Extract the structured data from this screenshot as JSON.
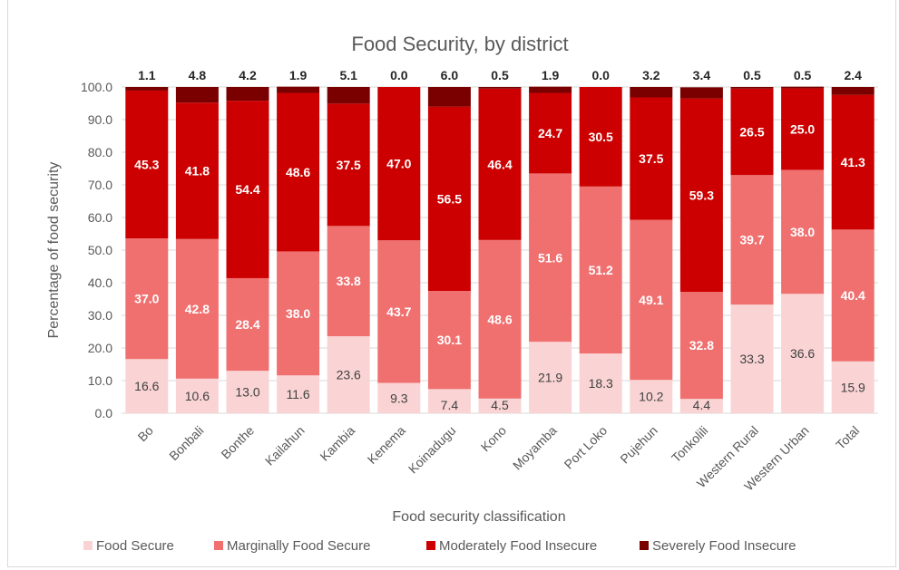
{
  "chart_data": {
    "type": "bar",
    "stacked": true,
    "title": "Food Security, by district",
    "xlabel": "Food security classification",
    "ylabel": "Percentage of food security",
    "ylim": [
      0,
      100
    ],
    "yticks": [
      "0.0",
      "10.0",
      "20.0",
      "30.0",
      "40.0",
      "50.0",
      "60.0",
      "70.0",
      "80.0",
      "90.0",
      "100.0"
    ],
    "grid": true,
    "legend_position": "bottom",
    "categories": [
      "Bo",
      "Bonbali",
      "Bonthe",
      "Kailahun",
      "Kambia",
      "Kenema",
      "Koinadugu",
      "Kono",
      "Moyamba",
      "Port Loko",
      "Pujehun",
      "Tonkolili",
      "Western Rural",
      "Western Urban",
      "Total"
    ],
    "series": [
      {
        "name": "Food Secure",
        "color": "#fad4d4",
        "values": [
          16.6,
          10.6,
          13.0,
          11.6,
          23.6,
          9.3,
          7.4,
          4.5,
          21.9,
          18.3,
          10.2,
          4.4,
          33.3,
          36.6,
          15.9
        ],
        "labels": [
          "16.6",
          "10.6",
          "13.0",
          "11.6",
          "23.6",
          "9.3",
          "7.4",
          "4.5",
          "21.9",
          "18.3",
          "10.2",
          "4.4",
          "33.3",
          "36.6",
          "15.9"
        ]
      },
      {
        "name": "Marginally Food Secure",
        "color": "#f07070",
        "values": [
          37.0,
          42.8,
          28.4,
          38.0,
          33.8,
          43.7,
          30.1,
          48.6,
          51.6,
          51.2,
          49.1,
          32.8,
          39.7,
          38.0,
          40.4
        ],
        "labels": [
          "37.0",
          "42.8",
          "28.4",
          "38.0",
          "33.8",
          "43.7",
          "30.1",
          "48.6",
          "51.6",
          "51.2",
          "49.1",
          "32.8",
          "39.7",
          "38.0",
          "40.4"
        ]
      },
      {
        "name": "Moderately Food Insecure",
        "color": "#cc0000",
        "values": [
          45.3,
          41.8,
          54.4,
          48.6,
          37.5,
          47.0,
          56.5,
          46.4,
          24.7,
          30.5,
          37.5,
          59.3,
          26.5,
          25.0,
          41.3
        ],
        "labels": [
          "45.3",
          "41.8",
          "54.4",
          "48.6",
          "37.5",
          "47.0",
          "56.5",
          "46.4",
          "24.7",
          "30.5",
          "37.5",
          "59.3",
          "26.5",
          "25.0",
          "41.3"
        ]
      },
      {
        "name": "Severely Food Insecure",
        "color": "#7a0000",
        "values": [
          1.1,
          4.8,
          4.2,
          1.9,
          5.1,
          0.0,
          6.0,
          0.5,
          1.9,
          0.0,
          3.2,
          3.4,
          0.5,
          0.5,
          2.4
        ],
        "labels": [
          "1.1",
          "4.8",
          "4.2",
          "1.9",
          "5.1",
          "0.0",
          "6.0",
          "0.5",
          "1.9",
          "0.0",
          "3.2",
          "3.4",
          "0.5",
          "0.5",
          "2.4"
        ]
      }
    ]
  }
}
